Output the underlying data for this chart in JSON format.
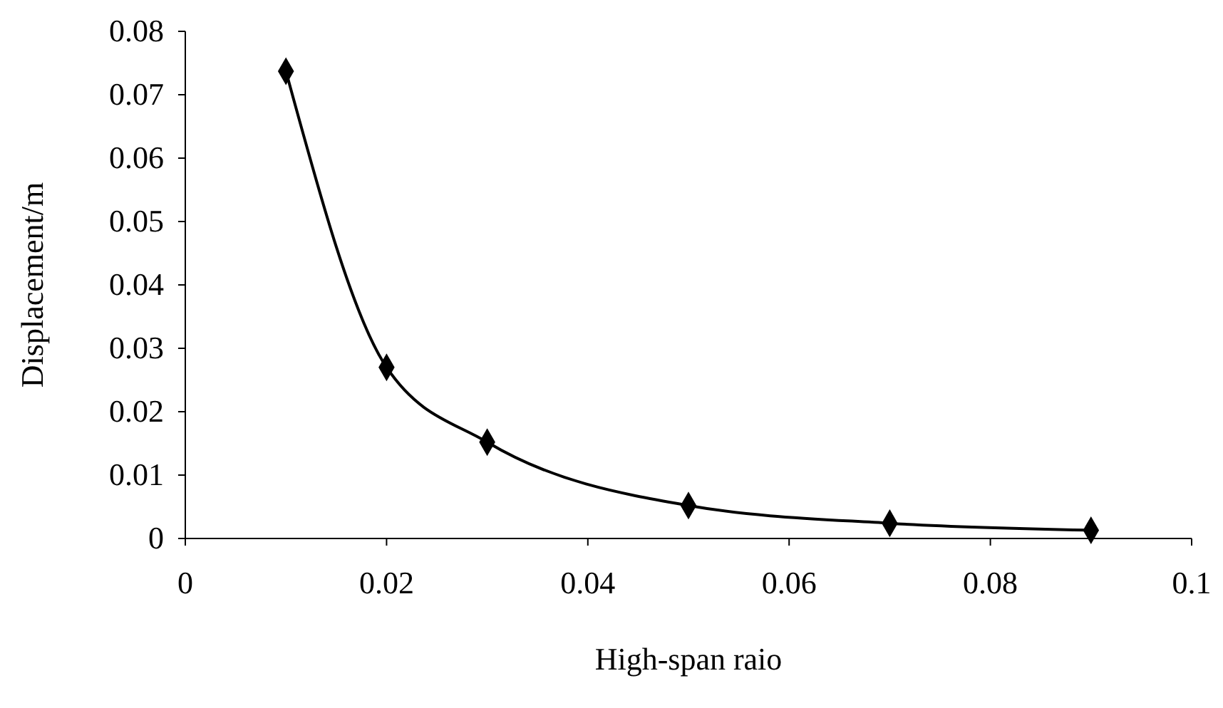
{
  "chart_data": {
    "type": "line",
    "xlabel": "High-span raio",
    "ylabel": "Displacement/m",
    "x": [
      0.01,
      0.02,
      0.03,
      0.05,
      0.07,
      0.09
    ],
    "series": [
      {
        "color": "#000000",
        "values": [
          0.0737,
          0.027,
          0.0152,
          0.0052,
          0.0024,
          0.0013
        ]
      }
    ],
    "xlim": [
      0,
      0.1
    ],
    "xticks": [
      0,
      0.02,
      0.04,
      0.06,
      0.08,
      0.1
    ],
    "ylim": [
      0,
      0.08
    ],
    "yticks": [
      0,
      0.01,
      0.02,
      0.03,
      0.04,
      0.05,
      0.06,
      0.07,
      0.08
    ],
    "grid": false,
    "legend": false,
    "marker": "diamond",
    "line_style": "solid"
  }
}
